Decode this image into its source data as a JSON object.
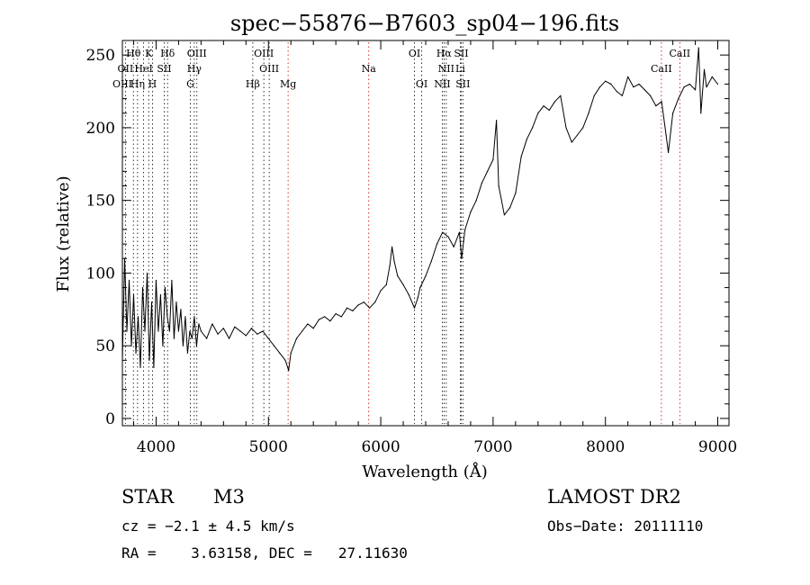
{
  "chart_data": {
    "type": "line",
    "title": "spec−55876−B7603_sp04−196.fits",
    "xlabel": "Wavelength (Å)",
    "ylabel": "Flux (relative)",
    "xlim": [
      3700,
      9100
    ],
    "ylim": [
      -5,
      260
    ],
    "x_ticks": [
      4000,
      5000,
      6000,
      7000,
      8000,
      9000
    ],
    "x_tick_labels": [
      "4000",
      "5000",
      "6000",
      "7000",
      "8000",
      "9000"
    ],
    "y_ticks": [
      0,
      50,
      100,
      150,
      200,
      250
    ],
    "y_tick_labels": [
      "0",
      "50",
      "100",
      "150",
      "200",
      "250"
    ],
    "grid": false,
    "series": [
      {
        "x": [
          3700,
          3720,
          3740,
          3760,
          3780,
          3800,
          3820,
          3840,
          3860,
          3880,
          3900,
          3920,
          3940,
          3960,
          3980,
          4000,
          4020,
          4040,
          4060,
          4080,
          4100,
          4120,
          4140,
          4160,
          4180,
          4200,
          4220,
          4240,
          4260,
          4280,
          4300,
          4320,
          4340,
          4360,
          4380,
          4400,
          4450,
          4500,
          4550,
          4600,
          4650,
          4700,
          4750,
          4800,
          4850,
          4900,
          4950,
          5000,
          5050,
          5100,
          5150,
          5180,
          5200,
          5250,
          5300,
          5350,
          5400,
          5450,
          5500,
          5550,
          5600,
          5650,
          5700,
          5750,
          5800,
          5850,
          5900,
          5950,
          6000,
          6050,
          6080,
          6100,
          6120,
          6150,
          6200,
          6250,
          6300,
          6330,
          6350,
          6400,
          6450,
          6500,
          6550,
          6600,
          6650,
          6700,
          6720,
          6750,
          6800,
          6850,
          6900,
          6950,
          7000,
          7030,
          7050,
          7100,
          7150,
          7200,
          7250,
          7300,
          7350,
          7400,
          7450,
          7500,
          7550,
          7600,
          7650,
          7700,
          7750,
          7800,
          7850,
          7900,
          7950,
          8000,
          8050,
          8100,
          8150,
          8200,
          8250,
          8300,
          8350,
          8400,
          8450,
          8500,
          8540,
          8560,
          8600,
          8650,
          8700,
          8750,
          8800,
          8830,
          8850,
          8880,
          8900,
          8950,
          9000
        ],
        "y": [
          40,
          110,
          60,
          95,
          50,
          85,
          45,
          70,
          35,
          90,
          60,
          100,
          40,
          80,
          35,
          95,
          60,
          85,
          50,
          90,
          70,
          60,
          95,
          55,
          80,
          60,
          75,
          50,
          70,
          45,
          60,
          55,
          70,
          50,
          65,
          60,
          55,
          65,
          58,
          62,
          55,
          63,
          60,
          57,
          62,
          58,
          60,
          55,
          50,
          45,
          40,
          33,
          45,
          55,
          60,
          65,
          62,
          68,
          70,
          67,
          72,
          70,
          76,
          74,
          78,
          80,
          76,
          80,
          88,
          92,
          105,
          118,
          108,
          98,
          92,
          85,
          76,
          83,
          90,
          98,
          108,
          120,
          128,
          125,
          118,
          128,
          110,
          130,
          142,
          150,
          162,
          170,
          178,
          205,
          160,
          140,
          145,
          155,
          180,
          192,
          200,
          210,
          215,
          212,
          218,
          222,
          200,
          190,
          195,
          200,
          210,
          222,
          228,
          232,
          230,
          225,
          222,
          235,
          228,
          230,
          226,
          222,
          215,
          218,
          195,
          183,
          210,
          220,
          228,
          230,
          226,
          255,
          210,
          240,
          228,
          235,
          230
        ]
      }
    ],
    "spectral_lines": [
      {
        "label": "Hθ",
        "x": 3798,
        "color": "#000000",
        "row": 0
      },
      {
        "label": "K",
        "x": 3934,
        "color": "#000000",
        "row": 0
      },
      {
        "label": "Hδ",
        "x": 4102,
        "color": "#000000",
        "row": 0
      },
      {
        "label": "OIII",
        "x": 4363,
        "color": "#000000",
        "row": 0
      },
      {
        "label": "OIII",
        "x": 4959,
        "color": "#000000",
        "row": 0
      },
      {
        "label": "OI",
        "x": 6300,
        "color": "#000000",
        "row": 0
      },
      {
        "label": "Hα",
        "x": 6563,
        "color": "#000000",
        "row": 0
      },
      {
        "label": "SII",
        "x": 6716,
        "color": "#000000",
        "row": 0
      },
      {
        "label": "CaII",
        "x": 8662,
        "color": "#cc0000",
        "row": 0
      },
      {
        "label": "OII",
        "x": 3727,
        "color": "#000000",
        "row": 1
      },
      {
        "label": "HeI",
        "x": 3889,
        "color": "#000000",
        "row": 1
      },
      {
        "label": "SII",
        "x": 4072,
        "color": "#000000",
        "row": 1
      },
      {
        "label": "Hγ",
        "x": 4340,
        "color": "#000000",
        "row": 1
      },
      {
        "label": "OIII",
        "x": 5007,
        "color": "#000000",
        "row": 1
      },
      {
        "label": "Na",
        "x": 5893,
        "color": "#cc0000",
        "row": 1
      },
      {
        "label": "NII",
        "x": 6583,
        "color": "#000000",
        "row": 1
      },
      {
        "label": "Li",
        "x": 6708,
        "color": "#000000",
        "row": 1
      },
      {
        "label": "CaII",
        "x": 8498,
        "color": "#cc0000",
        "row": 1
      },
      {
        "label": "OIII",
        "x": 3700,
        "color": "#000000",
        "row": 2
      },
      {
        "label": "Hη",
        "x": 3835,
        "color": "#000000",
        "row": 2
      },
      {
        "label": "H",
        "x": 3968,
        "color": "#000000",
        "row": 2
      },
      {
        "label": "G",
        "x": 4305,
        "color": "#000000",
        "row": 2
      },
      {
        "label": "Hβ",
        "x": 4861,
        "color": "#000000",
        "row": 2
      },
      {
        "label": "Mg",
        "x": 5175,
        "color": "#cc0000",
        "row": 2
      },
      {
        "label": "OI",
        "x": 6364,
        "color": "#000000",
        "row": 2
      },
      {
        "label": "NII",
        "x": 6548,
        "color": "#000000",
        "row": 2
      },
      {
        "label": "SII",
        "x": 6731,
        "color": "#000000",
        "row": 2
      }
    ]
  },
  "info": {
    "object_class": "STAR",
    "subclass": "M3",
    "survey": "LAMOST DR2",
    "cz": "cz = −2.1 ± 4.5 km/s",
    "obs_date": "Obs−Date: 20111110",
    "coords": "RA =    3.63158, DEC =   27.11630"
  }
}
